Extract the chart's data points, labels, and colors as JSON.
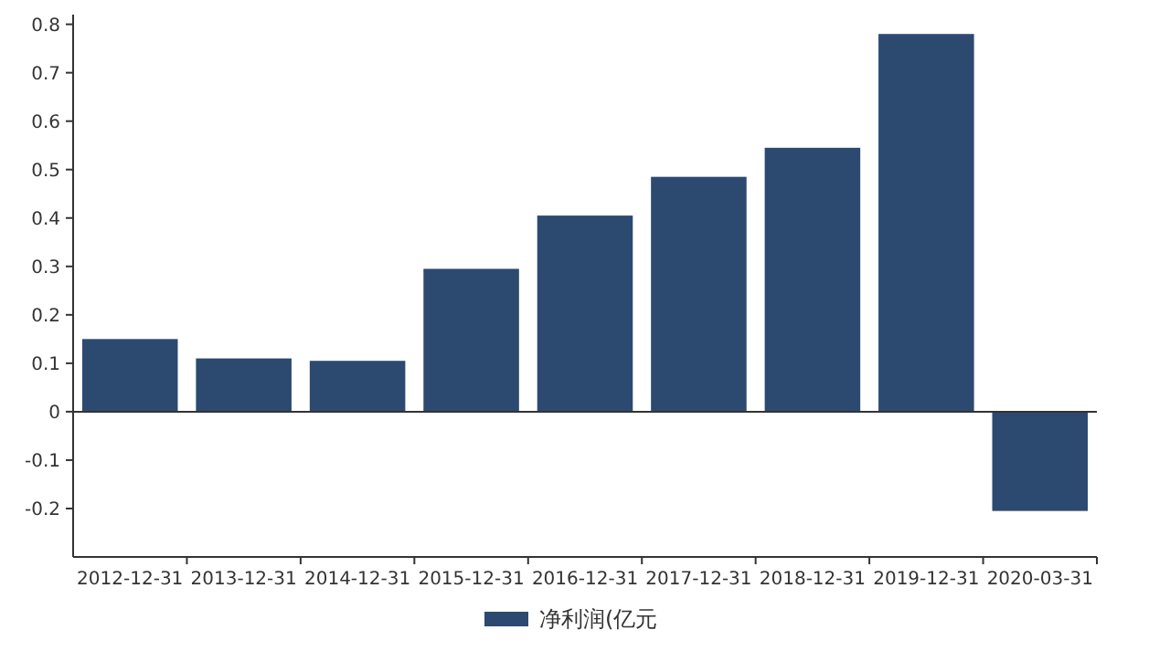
{
  "chart_data": {
    "type": "bar",
    "categories": [
      "2012-12-31",
      "2013-12-31",
      "2014-12-31",
      "2015-12-31",
      "2016-12-31",
      "2017-12-31",
      "2018-12-31",
      "2019-12-31",
      "2020-03-31"
    ],
    "series": [
      {
        "name": "净利润(亿元",
        "color": "#2c4a70",
        "values": [
          0.15,
          0.11,
          0.105,
          0.295,
          0.405,
          0.485,
          0.545,
          0.78,
          -0.205
        ]
      }
    ],
    "ylim": [
      -0.3,
      0.82
    ],
    "yticks": [
      -0.2,
      -0.1,
      0,
      0.1,
      0.2,
      0.3,
      0.4,
      0.5,
      0.6,
      0.7,
      0.8
    ],
    "legend": "bottom"
  }
}
